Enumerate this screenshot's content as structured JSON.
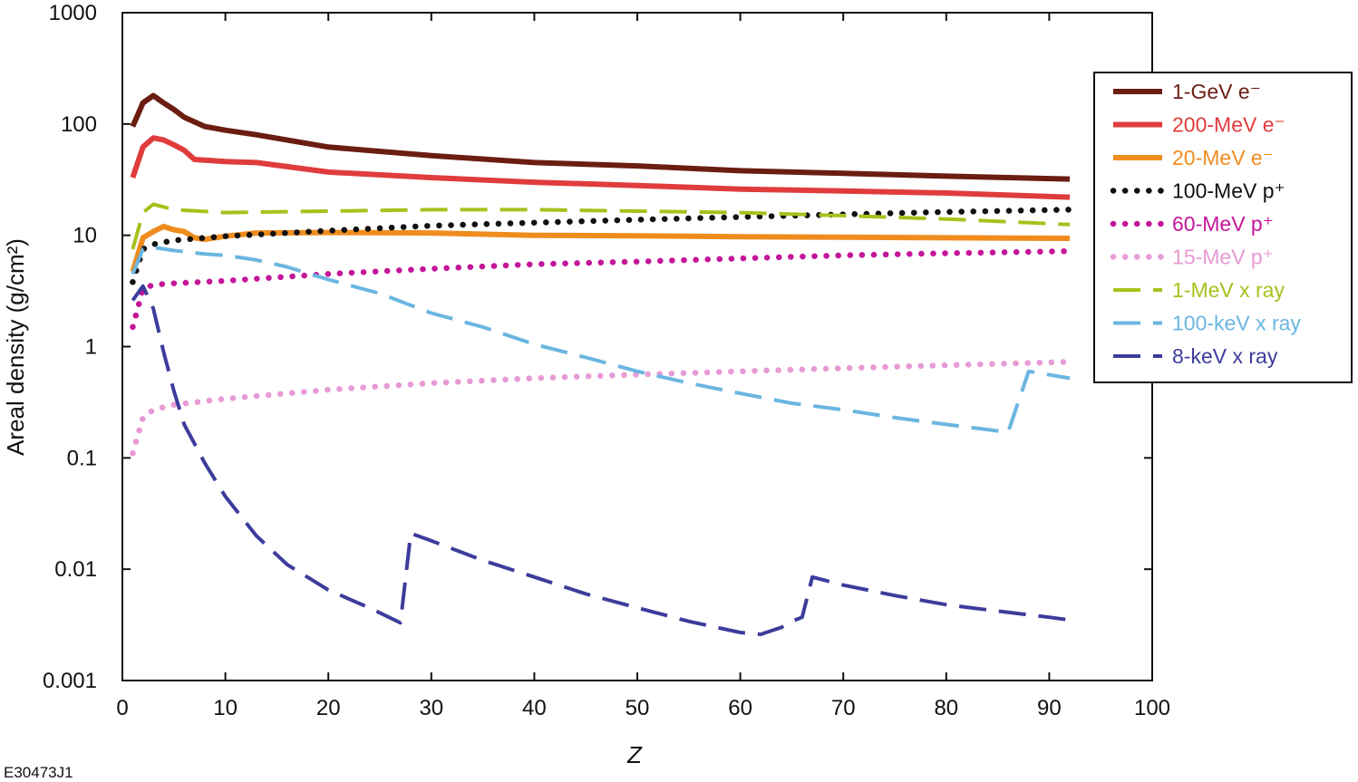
{
  "figure_id": "E30473J1",
  "chart_data": {
    "type": "line",
    "xlabel": "Z",
    "ylabel": "Areal density (g/cm²)",
    "xlim": [
      0,
      100
    ],
    "ylim": [
      0.001,
      1000
    ],
    "yscale": "log",
    "x_ticks": [
      0,
      10,
      20,
      30,
      40,
      50,
      60,
      70,
      80,
      90,
      100
    ],
    "x_tick_labels": [
      "0",
      "10",
      "20",
      "30",
      "40",
      "50",
      "60",
      "70",
      "80",
      "90",
      "100"
    ],
    "y_ticks": [
      0.001,
      0.01,
      0.1,
      1,
      10,
      100,
      1000
    ],
    "y_tick_labels": [
      "0.001",
      "0.01",
      "0.1",
      "1",
      "10",
      "100",
      "1000"
    ],
    "grid": false,
    "legend_position": "right",
    "series": [
      {
        "name": "1-GeV e⁻",
        "color": "#6b1d12",
        "style": "solid",
        "x": [
          1,
          2,
          3,
          4,
          5,
          6,
          8,
          10,
          13,
          20,
          30,
          40,
          50,
          60,
          70,
          80,
          92
        ],
        "y": [
          95,
          155,
          180,
          155,
          135,
          115,
          95,
          88,
          80,
          62,
          52,
          45,
          42,
          38,
          36,
          34,
          32
        ]
      },
      {
        "name": "200-MeV e⁻",
        "color": "#e03c3c",
        "style": "solid",
        "x": [
          1,
          2,
          3,
          4,
          5,
          6,
          7,
          10,
          13,
          20,
          30,
          40,
          50,
          60,
          70,
          80,
          92
        ],
        "y": [
          33,
          62,
          75,
          72,
          65,
          58,
          48,
          46,
          45,
          37,
          33,
          30,
          28,
          26,
          25,
          24,
          22
        ]
      },
      {
        "name": "20-MeV e⁻",
        "color": "#f08c1e",
        "style": "solid",
        "x": [
          1,
          2,
          3,
          4,
          5,
          6,
          7,
          8,
          10,
          13,
          20,
          30,
          40,
          50,
          60,
          70,
          80,
          92
        ],
        "y": [
          4.7,
          9.5,
          10.8,
          12,
          11.2,
          10.8,
          9.5,
          9.2,
          9.8,
          10.5,
          10.6,
          10.5,
          10,
          9.9,
          9.7,
          9.6,
          9.5,
          9.4
        ]
      },
      {
        "name": "100-MeV p⁺",
        "color": "#111111",
        "style": "dotted",
        "x": [
          1,
          2,
          3,
          5,
          10,
          20,
          30,
          40,
          50,
          60,
          70,
          80,
          92
        ],
        "y": [
          3.8,
          7.5,
          8.3,
          9,
          9.8,
          11,
          12.2,
          13,
          13.8,
          14.6,
          15.4,
          16.2,
          17
        ]
      },
      {
        "name": "60-MeV p⁺",
        "color": "#c4169a",
        "style": "dotted",
        "x": [
          1,
          2,
          3,
          5,
          10,
          20,
          30,
          40,
          50,
          60,
          70,
          80,
          92
        ],
        "y": [
          1.5,
          3.3,
          3.6,
          3.7,
          3.9,
          4.5,
          5,
          5.5,
          5.8,
          6.2,
          6.6,
          6.9,
          7.2
        ]
      },
      {
        "name": "15-MeV p⁺",
        "color": "#e79ad4",
        "style": "dotted",
        "x": [
          1,
          2,
          3,
          5,
          10,
          20,
          30,
          40,
          50,
          60,
          70,
          80,
          92
        ],
        "y": [
          0.11,
          0.23,
          0.27,
          0.3,
          0.34,
          0.41,
          0.47,
          0.52,
          0.56,
          0.6,
          0.64,
          0.68,
          0.73
        ]
      },
      {
        "name": "1-MeV x ray",
        "color": "#a9c01c",
        "style": "dashed",
        "x": [
          1,
          2,
          3,
          5,
          10,
          20,
          30,
          40,
          50,
          60,
          70,
          80,
          92
        ],
        "y": [
          7.5,
          16,
          19,
          17,
          16,
          16.5,
          17,
          17,
          16.5,
          16,
          15,
          14,
          12.5
        ]
      },
      {
        "name": "100-keV x ray",
        "color": "#6ab6e0",
        "style": "dashed",
        "x": [
          1,
          2,
          3,
          5,
          8,
          10,
          13,
          16,
          20,
          25,
          30,
          35,
          40,
          45,
          50,
          55,
          60,
          65,
          70,
          75,
          80,
          86,
          88,
          92
        ],
        "y": [
          4.5,
          7.5,
          7.8,
          7.3,
          6.8,
          6.6,
          6,
          5.2,
          4,
          3,
          2,
          1.5,
          1.05,
          0.8,
          0.6,
          0.47,
          0.38,
          0.31,
          0.27,
          0.23,
          0.2,
          0.17,
          0.6,
          0.52
        ]
      },
      {
        "name": "8-keV x ray",
        "color": "#3c3c9c",
        "style": "dashed",
        "x": [
          1,
          2,
          3,
          4,
          5,
          6,
          8,
          10,
          13,
          16,
          20,
          24,
          27,
          28,
          30,
          35,
          40,
          45,
          50,
          55,
          60,
          62,
          63,
          64,
          65,
          66,
          67,
          70,
          75,
          80,
          85,
          90,
          92
        ],
        "y": [
          2.6,
          3.5,
          2.2,
          0.9,
          0.4,
          0.2,
          0.09,
          0.045,
          0.02,
          0.011,
          0.0065,
          0.0045,
          0.0033,
          0.021,
          0.018,
          0.012,
          0.0085,
          0.006,
          0.0045,
          0.0034,
          0.0027,
          0.0026,
          0.0028,
          0.003,
          0.0034,
          0.0037,
          0.0085,
          0.0072,
          0.0058,
          0.0048,
          0.0042,
          0.0037,
          0.0035
        ]
      }
    ]
  }
}
